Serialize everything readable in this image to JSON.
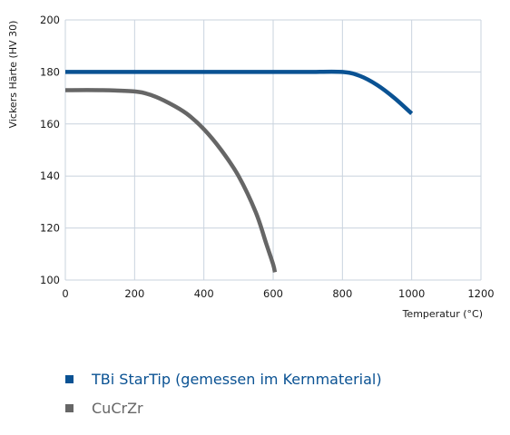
{
  "chart_data": {
    "type": "line",
    "xlabel": "Temperatur (°C)",
    "ylabel": "Vickers Härte (HV 30)",
    "xlim": [
      0,
      1200
    ],
    "ylim": [
      100,
      200
    ],
    "x_ticks": [
      "0",
      "200",
      "400",
      "600",
      "800",
      "1000",
      "1200"
    ],
    "y_ticks": [
      "100",
      "120",
      "140",
      "160",
      "180",
      "200"
    ],
    "grid": true,
    "legend_position": "bottom",
    "series": [
      {
        "name": "TBi StarTip (gemessen im Kernmaterial)",
        "color": "#0a5293",
        "x": [
          0,
          100,
          200,
          300,
          400,
          500,
          600,
          700,
          800,
          850,
          900,
          950,
          1000
        ],
        "y": [
          180,
          180,
          180,
          180,
          180,
          180,
          180,
          180,
          180,
          178.5,
          175,
          170,
          164
        ]
      },
      {
        "name": "CuCrZr",
        "color": "#666666",
        "x": [
          0,
          100,
          200,
          250,
          300,
          350,
          400,
          450,
          500,
          550,
          580,
          600,
          605
        ],
        "y": [
          173,
          173,
          172.5,
          171,
          168,
          164,
          158,
          150,
          140,
          126,
          114,
          106,
          103
        ]
      }
    ]
  }
}
